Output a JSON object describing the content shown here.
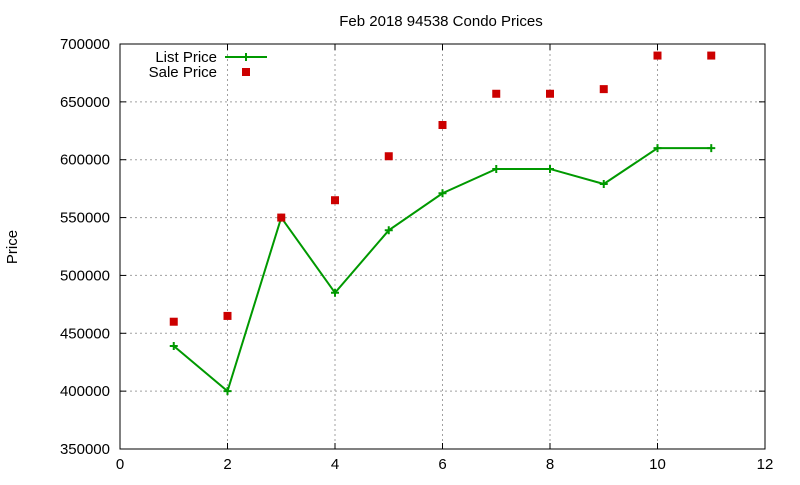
{
  "chart_data": {
    "type": "line",
    "title": "Feb 2018 94538 Condo Prices",
    "xlabel": "",
    "ylabel": "Price",
    "xlim": [
      0,
      12
    ],
    "ylim": [
      350000,
      700000
    ],
    "xticks": [
      0,
      2,
      4,
      6,
      8,
      10,
      12
    ],
    "yticks": [
      350000,
      400000,
      450000,
      500000,
      550000,
      600000,
      650000,
      700000
    ],
    "grid": true,
    "legend_position": "top-left",
    "series": [
      {
        "name": "List Price",
        "style": "line-points",
        "marker": "plus",
        "color": "#009900",
        "x": [
          1,
          2,
          3,
          4,
          5,
          6,
          7,
          8,
          9,
          10,
          11
        ],
        "y": [
          439000,
          400000,
          550000,
          485000,
          539000,
          571000,
          592000,
          592000,
          579000,
          610000,
          610000
        ]
      },
      {
        "name": "Sale Price",
        "style": "points",
        "marker": "square",
        "color": "#cc0000",
        "x": [
          1,
          2,
          3,
          4,
          5,
          6,
          7,
          8,
          9,
          10,
          11
        ],
        "y": [
          460000,
          465000,
          550000,
          565000,
          603000,
          630000,
          657000,
          657000,
          661000,
          690000,
          690000
        ]
      }
    ]
  }
}
